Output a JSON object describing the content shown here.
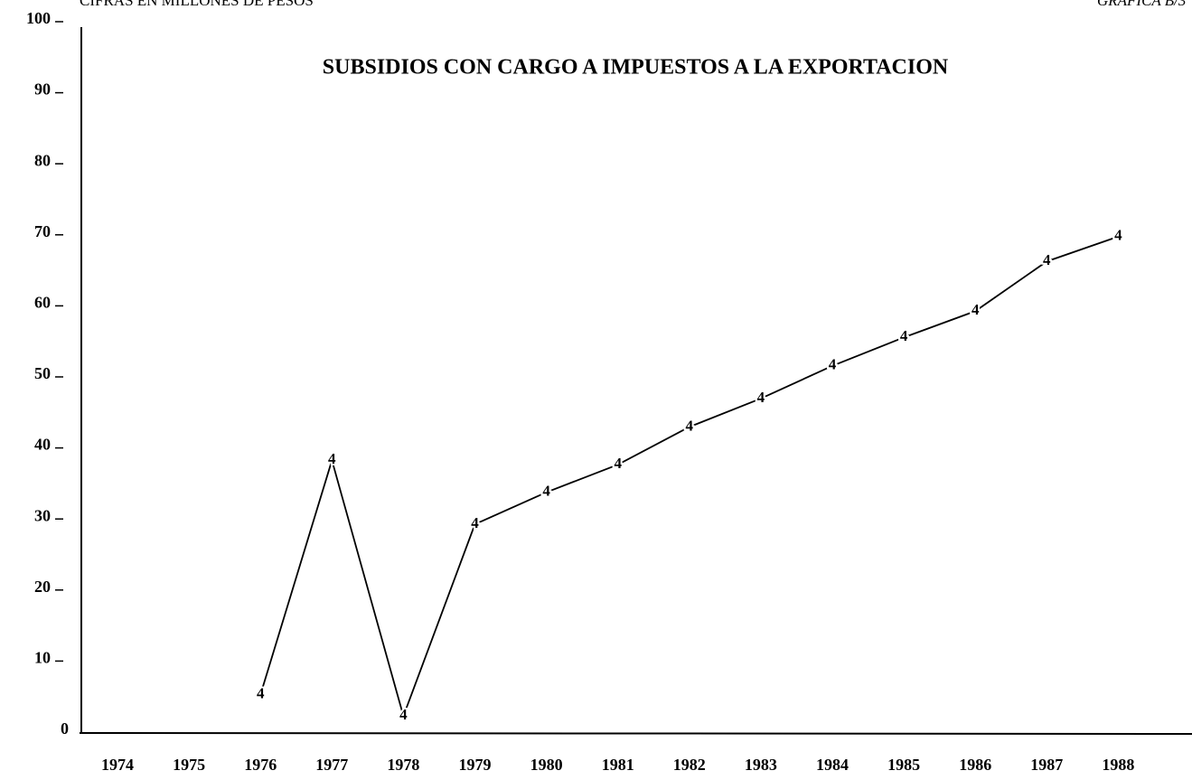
{
  "chart_data": {
    "type": "line",
    "title": "SUBSIDIOS CON CARGO A IMPUESTOS A LA EXPORTACION",
    "subtitle": "CIFRAS EN MILLONES DE PESOS",
    "chart_id": "GRAFICA B/3",
    "marker": "4",
    "categories": [
      "1974",
      "1975",
      "1976",
      "1977",
      "1978",
      "1979",
      "1980",
      "1981",
      "1982",
      "1983",
      "1984",
      "1985",
      "1986",
      "1987",
      "1988"
    ],
    "series": [
      {
        "name": "Subsidios",
        "color": "#000000",
        "values": [
          null,
          null,
          5,
          38,
          2,
          29,
          33.5,
          37.4,
          42.7,
          46.7,
          51.3,
          55.3,
          59,
          66,
          69.5
        ]
      }
    ],
    "ylim": [
      0,
      100
    ],
    "yticks": [
      0,
      10,
      20,
      30,
      40,
      50,
      60,
      70,
      80,
      90,
      100
    ],
    "grid": false
  }
}
